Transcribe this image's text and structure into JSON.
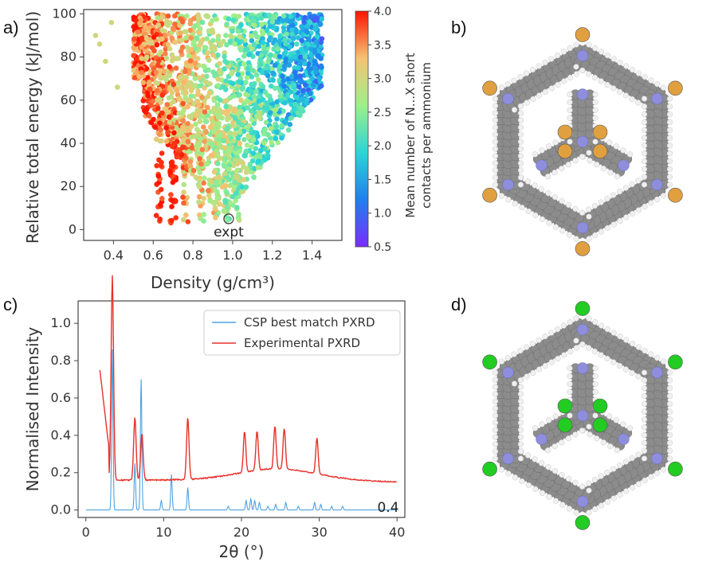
{
  "panels": {
    "a": "a)",
    "b": "b)",
    "c": "c)",
    "d": "d)"
  },
  "colors": {
    "atom_carbon": "#8c8c8c",
    "atom_nitrogen": "#8e8edc",
    "atom_hydrogen": "#f0f0f0",
    "halogen_b": "#e0a040",
    "halogen_d": "#22cc22",
    "csp_line": "#4ea3e0",
    "expt_line": "#e8312b"
  },
  "chart_data": [
    {
      "type": "scatter",
      "xlabel": "Density (g/cm³)",
      "ylabel": "Relative total energy (kJ/mol)",
      "xlim": [
        0.25,
        1.55
      ],
      "ylim": [
        -5,
        102
      ],
      "xticks": [
        "0.4",
        "0.6",
        "0.8",
        "1.0",
        "1.2",
        "1.4"
      ],
      "yticks": [
        "0",
        "20",
        "40",
        "60",
        "80",
        "100"
      ],
      "colorbar": {
        "label_line1": "Mean number of N...X short",
        "label_line2": "contacts per ammonium",
        "range": [
          0.5,
          4.0
        ],
        "ticks": [
          "0.5",
          "1.0",
          "1.5",
          "2.0",
          "2.5",
          "3.0",
          "3.5",
          "4.0"
        ],
        "colormap": "rainbow"
      },
      "annotation": {
        "label": "expt",
        "x": 0.98,
        "y": 5
      },
      "grid": false
    },
    {
      "type": "line",
      "xlabel": "2θ (°)",
      "ylabel": "Normalised Intensity",
      "xlim": [
        -1,
        41
      ],
      "ylim": [
        -0.04,
        1.12
      ],
      "xticks": [
        "0",
        "10",
        "20",
        "30",
        "40"
      ],
      "yticks": [
        "0.0",
        "0.2",
        "0.4",
        "0.6",
        "0.8",
        "1.0"
      ],
      "legend_position": "top-right",
      "annotation": "0.4",
      "series": [
        {
          "name": "CSP best match PXRD",
          "baseline": 0.0,
          "peaks": [
            [
              3.4,
              0.86
            ],
            [
              6.3,
              0.25
            ],
            [
              7.1,
              0.7
            ],
            [
              9.7,
              0.05
            ],
            [
              11.0,
              0.19
            ],
            [
              13.1,
              0.12
            ],
            [
              18.3,
              0.02
            ],
            [
              20.6,
              0.05
            ],
            [
              21.2,
              0.06
            ],
            [
              21.7,
              0.05
            ],
            [
              22.3,
              0.04
            ],
            [
              23.4,
              0.02
            ],
            [
              24.4,
              0.03
            ],
            [
              25.7,
              0.04
            ],
            [
              27.3,
              0.02
            ],
            [
              29.4,
              0.04
            ],
            [
              30.2,
              0.03
            ],
            [
              31.6,
              0.02
            ],
            [
              33.0,
              0.02
            ]
          ]
        },
        {
          "name": "Experimental PXRD",
          "baseline": 0.16,
          "start": [
            [
              1.8,
              0.75
            ],
            [
              2.2,
              0.55
            ],
            [
              2.6,
              0.36
            ]
          ],
          "peaks": [
            [
              3.4,
              1.1
            ],
            [
              6.3,
              0.34
            ],
            [
              7.2,
              0.25
            ],
            [
              13.1,
              0.33
            ],
            [
              20.4,
              0.22
            ],
            [
              22.0,
              0.21
            ],
            [
              24.3,
              0.23
            ],
            [
              25.5,
              0.22
            ],
            [
              29.7,
              0.19
            ]
          ]
        }
      ]
    }
  ]
}
